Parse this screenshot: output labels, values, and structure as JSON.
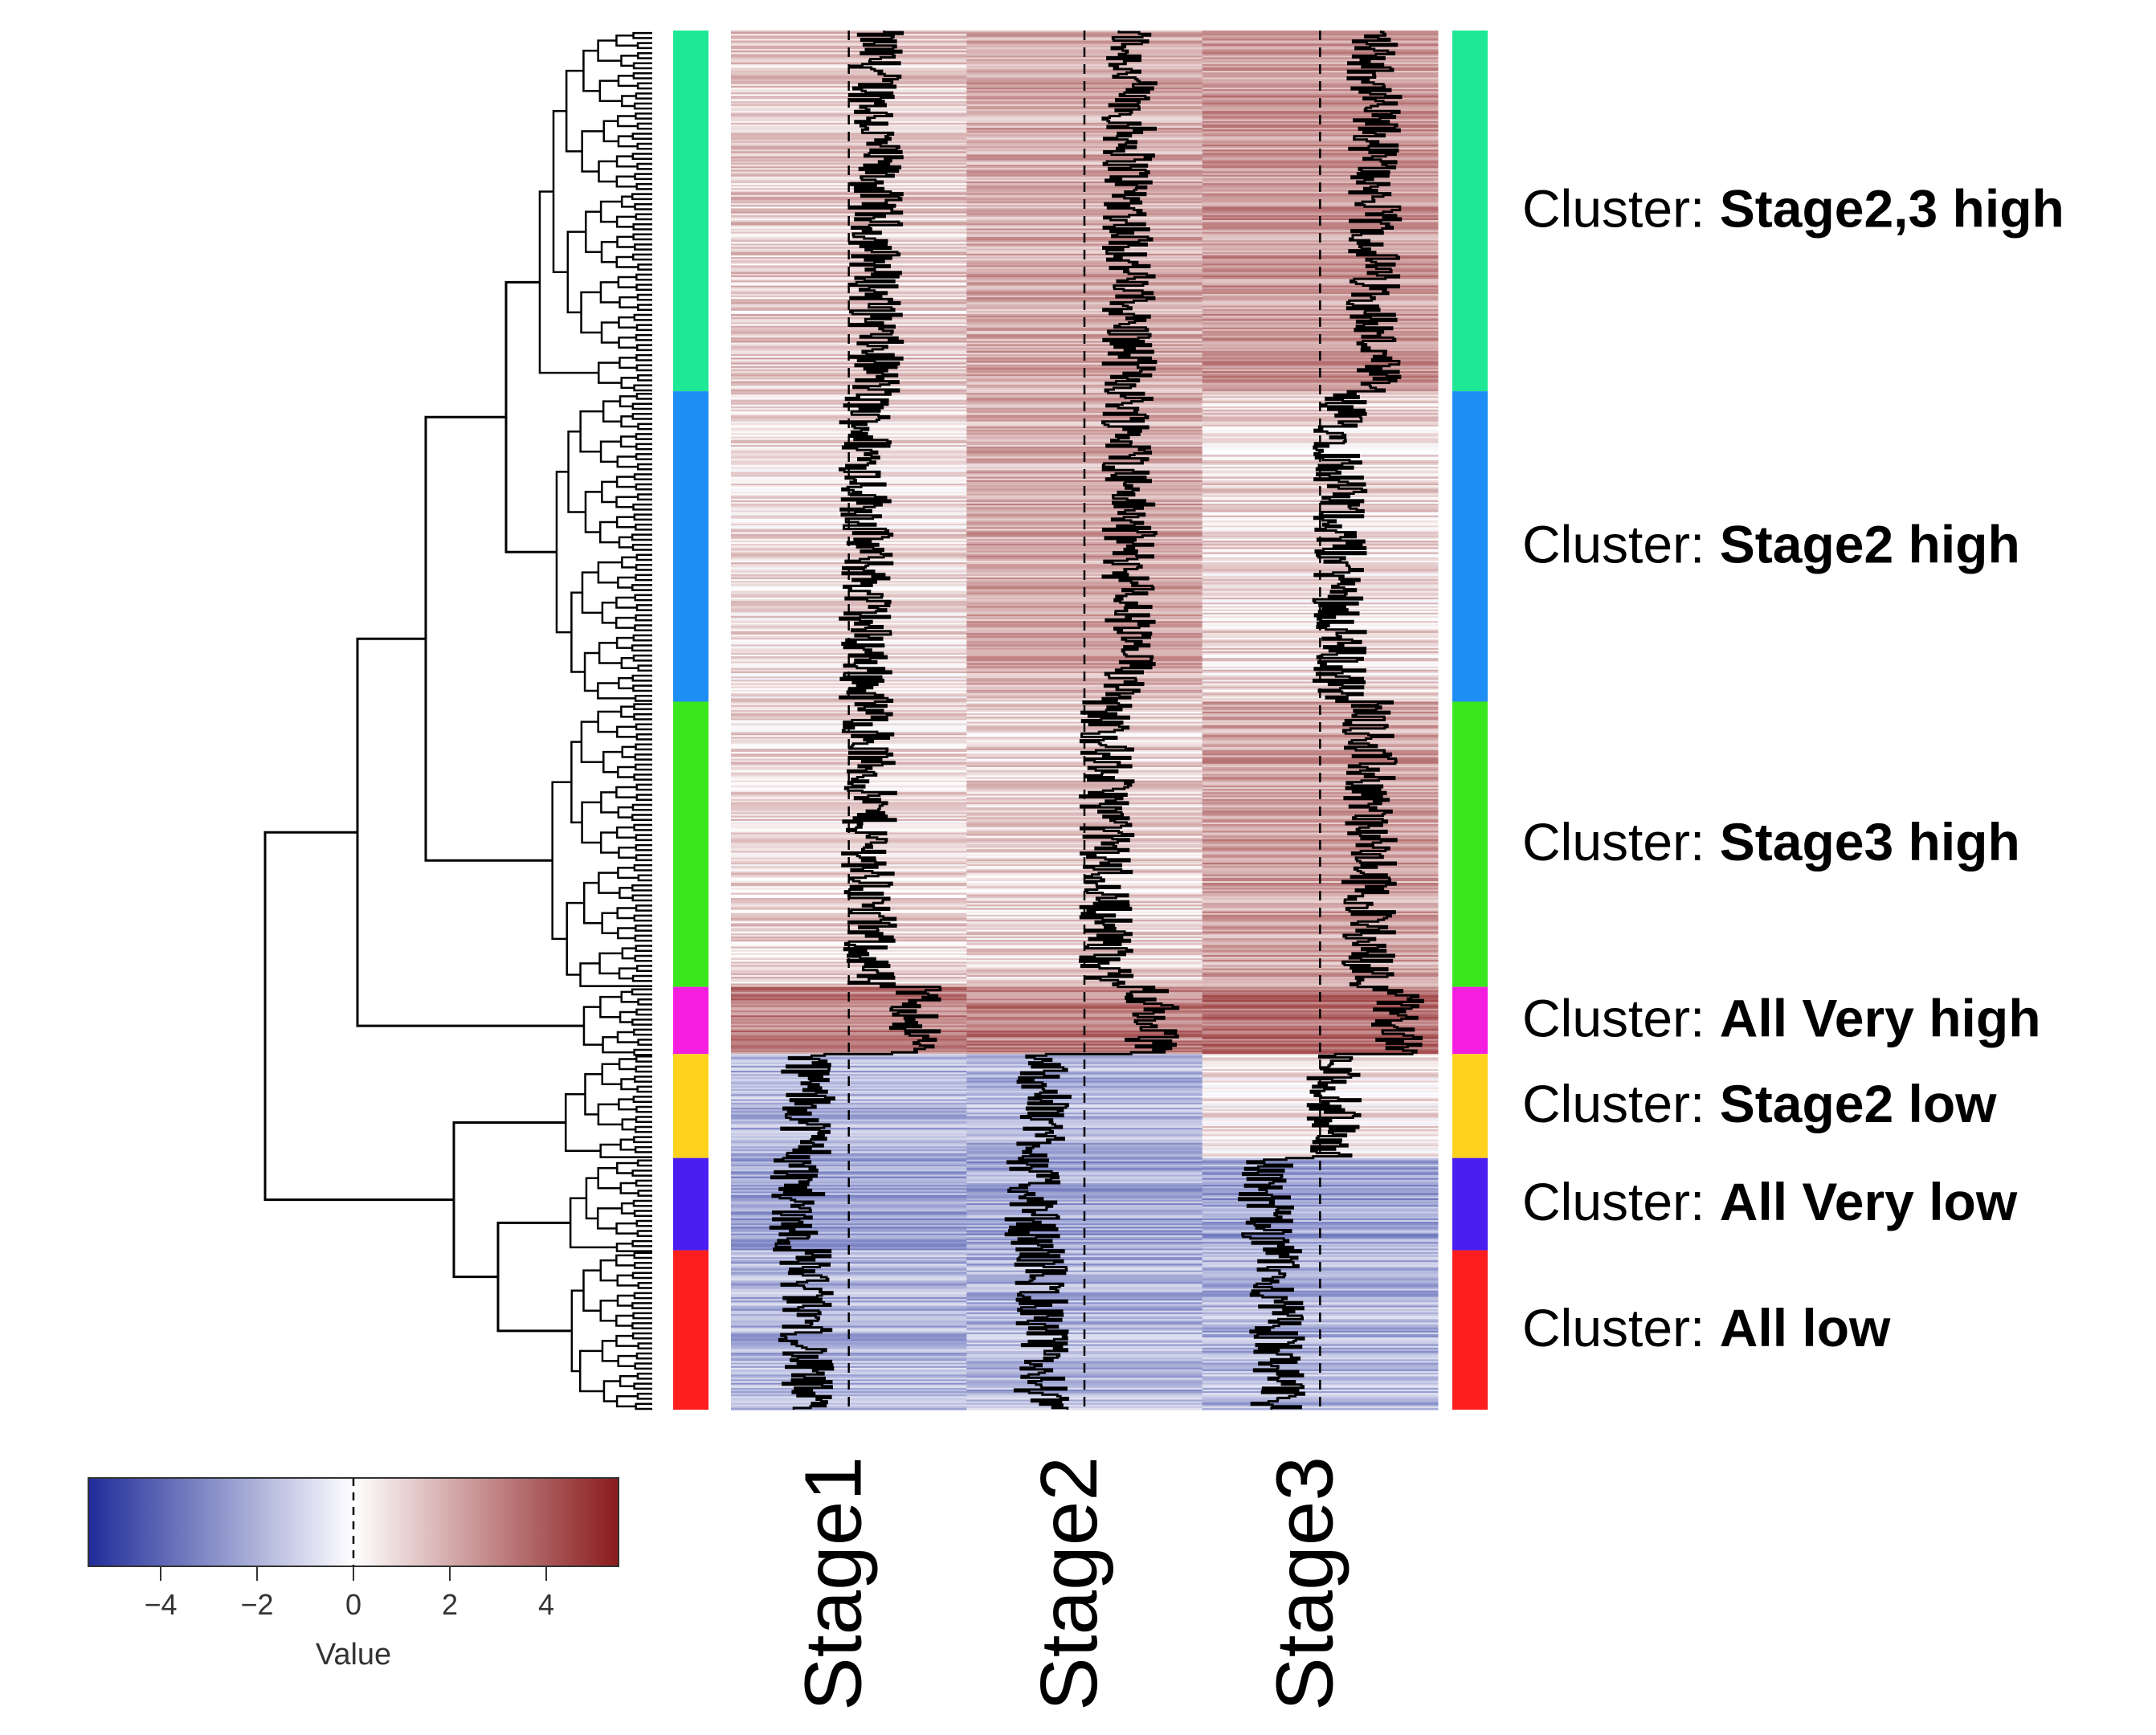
{
  "chart_data": {
    "type": "heatmap",
    "columns": [
      "Stage1",
      "Stage2",
      "Stage3"
    ],
    "clusters": [
      {
        "prefix": "Cluster: ",
        "name": "Stage2,3 high",
        "color": "#1ee896",
        "values": [
          1.2,
          2.0,
          2.4
        ],
        "count": 215
      },
      {
        "prefix": "Cluster: ",
        "name": "Stage2 high",
        "color": "#1e8ef5",
        "values": [
          0.8,
          2.0,
          0.9
        ],
        "count": 185
      },
      {
        "prefix": "Cluster: ",
        "name": "Stage3 high",
        "color": "#3ae61e",
        "values": [
          0.9,
          1.0,
          2.2
        ],
        "count": 170
      },
      {
        "prefix": "Cluster: ",
        "name": "All Very high",
        "color": "#f51ee0",
        "values": [
          3.0,
          3.0,
          3.5
        ],
        "count": 40
      },
      {
        "prefix": "Cluster: ",
        "name": "Stage2 low",
        "color": "#ffd21e",
        "values": [
          -1.8,
          -1.8,
          0.6
        ],
        "count": 62
      },
      {
        "prefix": "Cluster: ",
        "name": "All Very low",
        "color": "#4a1ef0",
        "values": [
          -2.3,
          -2.3,
          -2.4
        ],
        "count": 55
      },
      {
        "prefix": "Cluster: ",
        "name": "All low",
        "color": "#ff1e1e",
        "values": [
          -1.9,
          -1.9,
          -1.9
        ],
        "count": 95
      }
    ],
    "color_key": {
      "xlabel": "Value",
      "range": [
        -5.5,
        5.5
      ],
      "ticks": [
        -4,
        -2,
        0,
        2,
        4
      ],
      "tick_labels": [
        "−4",
        "−2",
        "0",
        "2",
        "4"
      ],
      "low_color": "#1f2c99",
      "mid_color": "#ffffff",
      "high_color": "#8a1a1c"
    },
    "trace": {
      "style": "column",
      "color": "#000000",
      "reference": "dashed"
    }
  }
}
